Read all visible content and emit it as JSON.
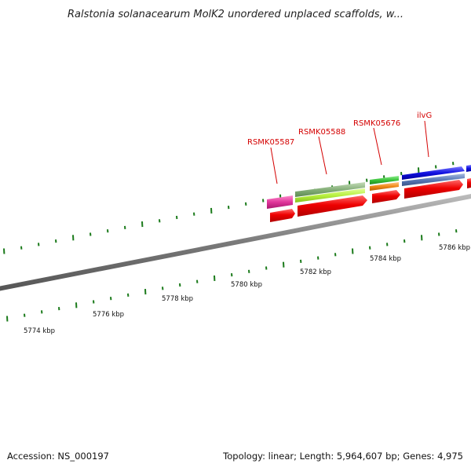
{
  "title": "Ralstonia solanacearum MolK2 unordered unplaced scaffolds, w...",
  "footer": {
    "accession": "Accession: NS_000197",
    "summary": "Topology: linear; Length: 5,964,607 bp; Genes: 4,975"
  },
  "scale_labels": [
    "5774 kbp",
    "5776 kbp",
    "5778 kbp",
    "5780 kbp",
    "5782 kbp",
    "5784 kbp",
    "5786 kbp"
  ],
  "gene_labels": [
    "RSMK05587",
    "RSMK05588",
    "RSMK05676",
    "ilvG"
  ],
  "colors": {
    "backbone": "#7a7a7a",
    "ticks": "#1a7a1a",
    "label": "#d40000",
    "magenta": "#e0359a",
    "sage": "#86b07a",
    "lime": "#b8f040",
    "green": "#3ac23a",
    "orange": "#f08a1a",
    "blue": "#1010e0",
    "steelblue": "#5a7ab8",
    "red": "#ee0000"
  }
}
